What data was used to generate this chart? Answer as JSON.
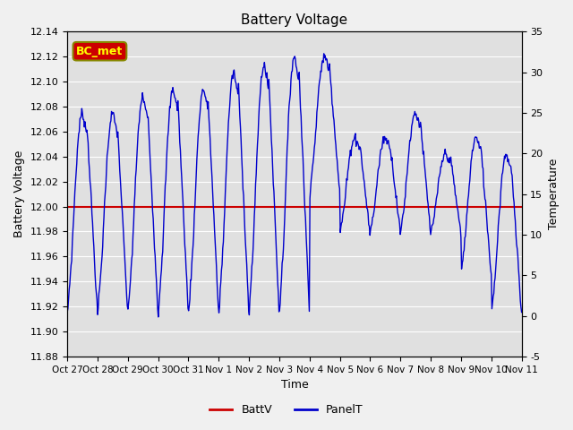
{
  "title": "Battery Voltage",
  "xlabel": "Time",
  "ylabel_left": "Battery Voltage",
  "ylabel_right": "Temperature",
  "ylim_left": [
    11.88,
    12.14
  ],
  "ylim_right": [
    -5,
    35
  ],
  "yticks_left": [
    11.88,
    11.9,
    11.92,
    11.94,
    11.96,
    11.98,
    12.0,
    12.02,
    12.04,
    12.06,
    12.08,
    12.1,
    12.12,
    12.14
  ],
  "yticks_right": [
    -5,
    0,
    5,
    10,
    15,
    20,
    25,
    30,
    35
  ],
  "xtick_labels": [
    "Oct 27",
    "Oct 28",
    "Oct 29",
    "Oct 30",
    "Oct 31",
    "Nov 1",
    "Nov 2",
    "Nov 3",
    "Nov 4",
    "Nov 5",
    "Nov 6",
    "Nov 7",
    "Nov 8",
    "Nov 9",
    "Nov 10",
    "Nov 11"
  ],
  "batt_v": 12.0,
  "batt_color": "#cc0000",
  "panel_color": "#0000cc",
  "annotation_text": "BC_met",
  "annotation_bg": "#cc0000",
  "annotation_fg": "#ffff00",
  "annotation_edge": "#888800",
  "background_color": "#e0e0e0",
  "grid_color": "#ffffff",
  "legend_labels": [
    "BattV",
    "PanelT"
  ],
  "fig_bg": "#f0f0f0"
}
